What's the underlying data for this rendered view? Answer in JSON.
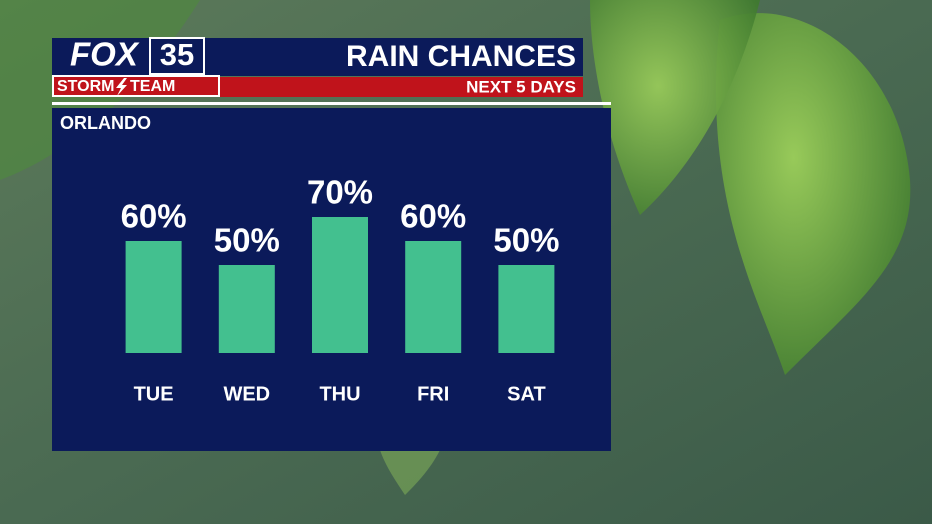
{
  "logo": {
    "brand": "FOX",
    "channel": "35",
    "team_left": "STORM",
    "team_right": "TEAM"
  },
  "chart_data": {
    "type": "bar",
    "title": "RAIN CHANCES",
    "subtitle": "NEXT 5 DAYS",
    "location": "ORLANDO",
    "categories": [
      "TUE",
      "WED",
      "THU",
      "FRI",
      "SAT"
    ],
    "values": [
      60,
      50,
      70,
      60,
      50
    ],
    "value_labels": [
      "60%",
      "50%",
      "70%",
      "60%",
      "50%"
    ],
    "color": "#43c08f"
  }
}
